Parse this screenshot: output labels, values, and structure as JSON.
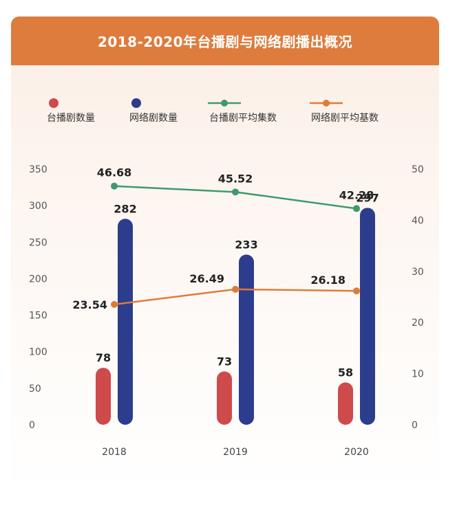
{
  "title": "2018-2020年台播剧与网络剧播出概况",
  "chart_data": {
    "type": "bar",
    "categories": [
      "2018",
      "2019",
      "2020"
    ],
    "series": [
      {
        "name": "台播剧数量",
        "kind": "bar",
        "axis": "left",
        "color": "#cf4a4a",
        "values": [
          78,
          73,
          58
        ]
      },
      {
        "name": "网络剧数量",
        "kind": "bar",
        "axis": "left",
        "color": "#2b3d8c",
        "values": [
          282,
          233,
          297
        ]
      },
      {
        "name": "台播剧平均集数",
        "kind": "line",
        "axis": "right",
        "color": "#3e9a6a",
        "values": [
          46.68,
          45.52,
          42.28
        ]
      },
      {
        "name": "网络剧平均基数",
        "kind": "line",
        "axis": "right",
        "color": "#de7b3a",
        "values": [
          23.54,
          26.49,
          26.18
        ]
      }
    ],
    "left_axis": {
      "ylim": [
        0,
        350
      ],
      "ticks": [
        "0",
        "50",
        "100",
        "150",
        "200",
        "250",
        "300",
        "350"
      ]
    },
    "right_axis": {
      "ylim": [
        0,
        50
      ],
      "ticks": [
        "0",
        "10",
        "20",
        "30",
        "40",
        "50"
      ]
    },
    "grid": false,
    "legend_position": "top"
  }
}
